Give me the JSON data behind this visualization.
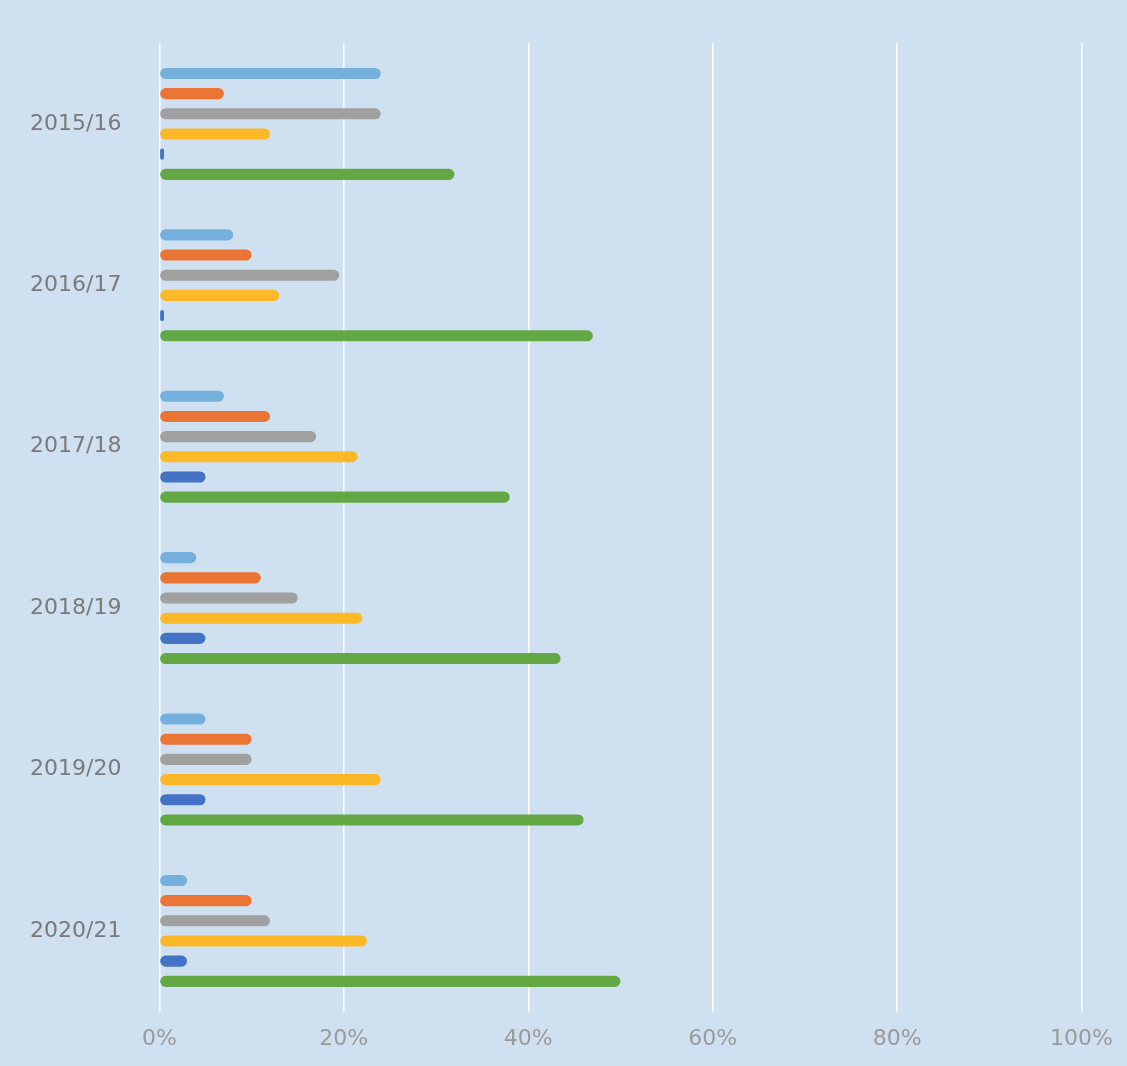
{
  "chart_data": {
    "type": "bar",
    "orientation": "horizontal",
    "categories": [
      "2015/16",
      "2016/17",
      "2017/18",
      "2018/19",
      "2019/20",
      "2020/21"
    ],
    "series": [
      {
        "color": "#75afdc",
        "values": [
          24,
          8,
          7,
          4,
          5,
          3
        ]
      },
      {
        "color": "#ea7434",
        "values": [
          7,
          10,
          12,
          11,
          10,
          10
        ]
      },
      {
        "color": "#a0a0a0",
        "values": [
          24,
          19.5,
          17,
          15,
          10,
          12
        ]
      },
      {
        "color": "#fdb827",
        "values": [
          12,
          13,
          21.5,
          22,
          24,
          22.5
        ]
      },
      {
        "color": "#4472c4",
        "values": [
          0.5,
          0.5,
          5,
          5,
          5,
          3
        ]
      },
      {
        "color": "#63a845",
        "values": [
          32,
          47,
          38,
          43.5,
          46,
          50
        ]
      }
    ],
    "xlim": [
      0,
      100
    ],
    "xticks": [
      {
        "value": 0,
        "label": "0%"
      },
      {
        "value": 20,
        "label": "20%"
      },
      {
        "value": 40,
        "label": "40%"
      },
      {
        "value": 60,
        "label": "60%"
      },
      {
        "value": 80,
        "label": "80%"
      },
      {
        "value": 100,
        "label": "100%"
      }
    ],
    "grid": "x"
  }
}
